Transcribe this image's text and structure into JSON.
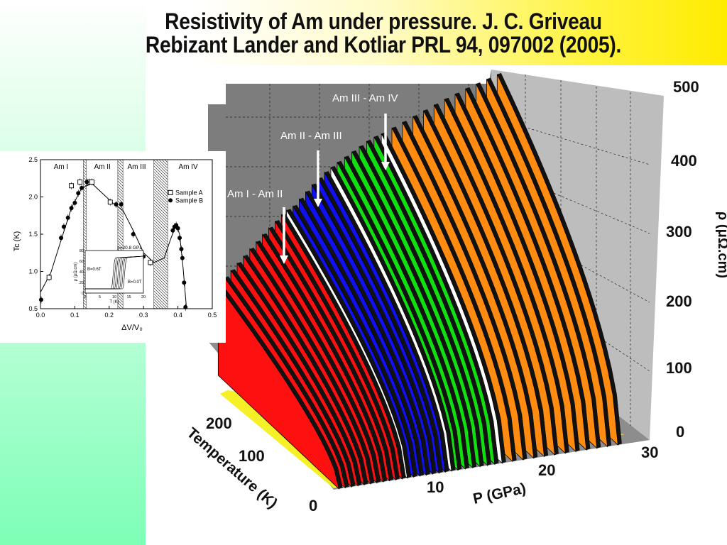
{
  "title": {
    "line1": "Resistivity of Am under pressure. J. C. Griveau",
    "line2": "Rebizant Lander and Kotliar PRL 94, 097002 (2005)."
  },
  "colors": {
    "Am I": "#ff1010",
    "Am II": "#1010f0",
    "Am III": "#10e010",
    "Am IV": "#ff8c10",
    "transition": "#ffffff"
  },
  "chart_data": [
    {
      "type": "area",
      "x_axis": {
        "label": "P (GPa)",
        "ticks": [
          "10",
          "20",
          "30"
        ],
        "range": [
          0,
          30
        ]
      },
      "y_axis": {
        "label": "Temperature (K)",
        "ticks": [
          "0",
          "100",
          "200"
        ],
        "range": [
          0,
          300
        ]
      },
      "z_axis": {
        "label": "ρ (μΩ.cm)",
        "ticks": [
          "0",
          "100",
          "200",
          "300",
          "400",
          "500"
        ],
        "range": [
          0,
          500
        ]
      },
      "phases": [
        {
          "name": "Am I",
          "p_range": [
            0,
            7
          ],
          "curves": 11
        },
        {
          "name": "Am II",
          "p_range": [
            7,
            11
          ],
          "curves": 6
        },
        {
          "name": "Am III",
          "p_range": [
            11,
            16
          ],
          "curves": 7
        },
        {
          "name": "Am IV",
          "p_range": [
            16,
            30
          ],
          "curves": 13
        }
      ],
      "curve_pressures": [
        0.5,
        1.1,
        1.7,
        2.3,
        2.9,
        3.5,
        4.1,
        4.7,
        5.3,
        5.9,
        6.5,
        7.0,
        7.6,
        8.2,
        8.8,
        9.4,
        10.0,
        10.6,
        11.2,
        11.8,
        12.5,
        13.2,
        13.9,
        14.6,
        15.3,
        16.0,
        17.0,
        18.0,
        19.0,
        20.0,
        21.0,
        22.0,
        23.0,
        24.0,
        25.0,
        26.0,
        27.0
      ],
      "curve_phases": [
        "Am I",
        "Am I",
        "Am I",
        "Am I",
        "Am I",
        "Am I",
        "Am I",
        "Am I",
        "Am I",
        "Am I",
        "Am I",
        "transition",
        "Am II",
        "Am II",
        "Am II",
        "Am II",
        "Am II",
        "Am II",
        "transition",
        "Am III",
        "Am III",
        "Am III",
        "Am III",
        "Am III",
        "Am III",
        "transition",
        "Am IV",
        "Am IV",
        "Am IV",
        "Am IV",
        "Am IV",
        "Am IV",
        "Am IV",
        "Am IV",
        "Am IV",
        "Am IV",
        "Am IV"
      ],
      "rho_max_300K": [
        175,
        188,
        200,
        212,
        224,
        236,
        248,
        260,
        271,
        282,
        293,
        300,
        306,
        318,
        330,
        342,
        352,
        362,
        370,
        378,
        386,
        394,
        402,
        410,
        416,
        420,
        428,
        436,
        444,
        452,
        460,
        468,
        475,
        482,
        488,
        494,
        500
      ],
      "annotations": [
        "Am I - Am II",
        "Am II - Am III",
        "Am III - Am IV"
      ]
    },
    {
      "type": "scatter",
      "x_axis": {
        "label": "ΔV/V₀",
        "ticks": [
          "0.0",
          "0.1",
          "0.2",
          "0.3",
          "0.4",
          "0.5"
        ],
        "range": [
          0,
          0.5
        ]
      },
      "y_axis": {
        "label": "Tc (K)",
        "ticks": [
          "0.5",
          "1.0",
          "1.5",
          "2.0",
          "2.5"
        ],
        "range": [
          0.5,
          2.5
        ]
      },
      "phase_labels": [
        "Am I",
        "Am II",
        "Am III",
        "Am IV"
      ],
      "hatched_bands": [
        [
          0.125,
          0.133
        ],
        [
          0.225,
          0.24
        ],
        [
          0.33,
          0.37
        ]
      ],
      "series": [
        {
          "name": "Sample A",
          "marker": "open-square",
          "x": [
            0.025,
            0.09,
            0.115,
            0.142,
            0.15,
            0.203,
            0.32
          ],
          "y": [
            0.92,
            2.15,
            2.2,
            2.2,
            2.2,
            1.93,
            1.12
          ]
        },
        {
          "name": "Sample B",
          "marker": "filled-circle",
          "x": [
            0.002,
            0.06,
            0.068,
            0.08,
            0.09,
            0.1,
            0.11,
            0.12,
            0.135,
            0.22,
            0.235,
            0.27,
            0.3,
            0.385,
            0.39,
            0.395,
            0.4,
            0.405,
            0.41,
            0.413,
            0.418,
            0.422
          ],
          "y": [
            0.62,
            1.45,
            1.6,
            1.72,
            1.85,
            1.92,
            2.05,
            2.12,
            2.2,
            1.9,
            1.9,
            1.5,
            1.2,
            1.55,
            1.6,
            1.62,
            1.58,
            1.45,
            1.3,
            1.18,
            0.85,
            0.52
          ]
        }
      ],
      "fit_curve": {
        "x": [
          0.0,
          0.03,
          0.06,
          0.09,
          0.12,
          0.15,
          0.18,
          0.21,
          0.24,
          0.27,
          0.3,
          0.33,
          0.36,
          0.38,
          0.395,
          0.405,
          0.415,
          0.425
        ],
        "y": [
          0.72,
          0.98,
          1.42,
          1.85,
          2.12,
          2.18,
          2.05,
          1.92,
          1.82,
          1.55,
          1.25,
          1.12,
          1.18,
          1.45,
          1.62,
          1.5,
          1.05,
          0.5
        ]
      },
      "inset": {
        "label": "p=20.8 GPa",
        "field_labels": [
          "B=0.6T",
          "B=0.0T"
        ],
        "x_axis": {
          "label": "T (K)",
          "ticks": [
            "0",
            "5",
            "10",
            "15",
            "20"
          ]
        },
        "y_axis": {
          "label": "ρ (μΩ.cm)",
          "ticks": [
            "0",
            "20",
            "40",
            "60",
            "80"
          ]
        },
        "curve_count": 8
      }
    }
  ]
}
